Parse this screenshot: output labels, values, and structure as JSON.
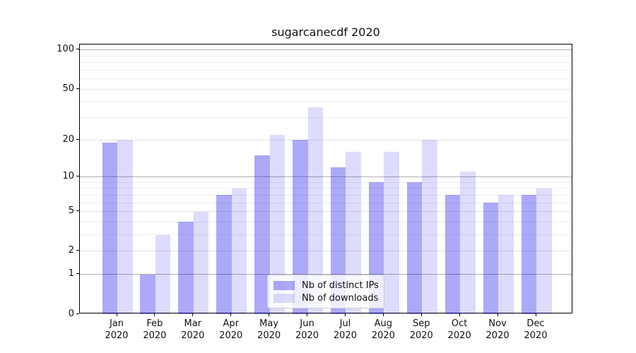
{
  "title": "sugarcanecdf 2020",
  "chart_data": {
    "type": "bar",
    "title": "sugarcanecdf 2020",
    "categories": [
      "Jan 2020",
      "Feb 2020",
      "Mar 2020",
      "Apr 2020",
      "May 2020",
      "Jun 2020",
      "Jul 2020",
      "Aug 2020",
      "Sep 2020",
      "Oct 2020",
      "Nov 2020",
      "Dec 2020"
    ],
    "months": [
      "Jan",
      "Feb",
      "Mar",
      "Apr",
      "May",
      "Jun",
      "Jul",
      "Aug",
      "Sep",
      "Oct",
      "Nov",
      "Dec"
    ],
    "year_label": "2020",
    "series": [
      {
        "name": "Nb of distinct IPs",
        "values": [
          19,
          1,
          4,
          7,
          15,
          20,
          12,
          9,
          9,
          7,
          6,
          7
        ],
        "color": "rgba(16,8,235,0.35)"
      },
      {
        "name": "Nb of downloads",
        "values": [
          20,
          3,
          5,
          8,
          22,
          36,
          16,
          16,
          20,
          11,
          7,
          8
        ],
        "color": "rgba(16,8,235,0.14)"
      }
    ],
    "xlabel": "",
    "ylabel": "",
    "yscale": "log1p",
    "ylim": [
      0,
      110
    ],
    "yticks": [
      0,
      1,
      2,
      5,
      10,
      20,
      50,
      100
    ],
    "grid": {
      "decade_ticks": [
        1,
        10,
        100
      ],
      "labeled_light_ticks": [
        2,
        5,
        20,
        50
      ],
      "minor_ticks": [
        3,
        4,
        6,
        7,
        8,
        9,
        30,
        40,
        60,
        70,
        80,
        90
      ]
    },
    "legend_position": "lower center"
  },
  "colors": {
    "background": "#ffffff",
    "spine": "#000000",
    "grid_decade": "#b0b0b0",
    "grid_labeled": "#e2e2e2",
    "grid_minor": "#ededed",
    "text": "#111111",
    "legend_border": "#cccccc",
    "legend_background": "rgba(255,255,255,0.8)"
  }
}
